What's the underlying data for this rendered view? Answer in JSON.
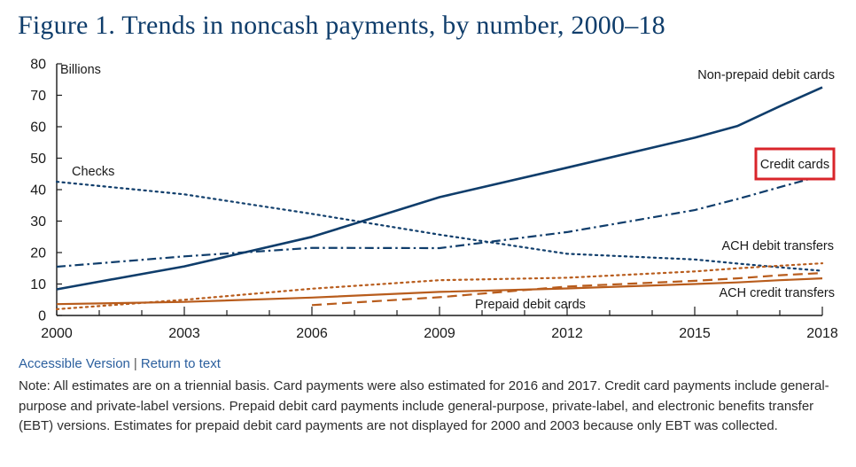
{
  "title": "Figure 1. Trends in noncash payments, by number, 2000–18",
  "chart_data": {
    "type": "line",
    "title": "Figure 1. Trends in noncash payments, by number, 2000–18",
    "ylabel": "Billions",
    "xlabel": "",
    "xlim": [
      2000,
      2018
    ],
    "ylim": [
      0,
      80
    ],
    "xticks": [
      2000,
      2003,
      2006,
      2009,
      2012,
      2015,
      2018
    ],
    "yticks": [
      0,
      10,
      20,
      30,
      40,
      50,
      60,
      70,
      80
    ],
    "series": [
      {
        "name": "Non-prepaid debit cards",
        "color": "#0f3d6b",
        "dash": "solid",
        "width": 2.6,
        "x": [
          2000,
          2003,
          2006,
          2009,
          2012,
          2015,
          2016,
          2017,
          2018
        ],
        "y": [
          8.3,
          15.6,
          25.0,
          37.6,
          47.0,
          56.5,
          60.2,
          66.5,
          72.5
        ]
      },
      {
        "name": "Credit cards",
        "color": "#0f3d6b",
        "dash": "dashdot",
        "width": 2.2,
        "x": [
          2000,
          2003,
          2006,
          2009,
          2012,
          2015,
          2016,
          2017,
          2018
        ],
        "y": [
          15.5,
          18.8,
          21.5,
          21.4,
          26.5,
          33.5,
          37.0,
          40.8,
          44.5
        ]
      },
      {
        "name": "Checks",
        "color": "#0f3d6b",
        "dash": "dotted",
        "width": 2.2,
        "x": [
          2000,
          2003,
          2006,
          2009,
          2012,
          2015,
          2016,
          2017,
          2018
        ],
        "y": [
          42.5,
          38.5,
          32.3,
          25.7,
          19.6,
          17.8,
          16.5,
          15.3,
          14.2
        ]
      },
      {
        "name": "ACH debit transfers",
        "color": "#b85c1c",
        "dash": "dotted",
        "width": 2.2,
        "x": [
          2000,
          2003,
          2006,
          2009,
          2012,
          2015,
          2016,
          2017,
          2018
        ],
        "y": [
          2.0,
          5.0,
          8.5,
          11.2,
          12.0,
          14.0,
          15.0,
          15.8,
          16.6
        ]
      },
      {
        "name": "ACH credit transfers",
        "color": "#b85c1c",
        "dash": "solid",
        "width": 2.2,
        "x": [
          2000,
          2003,
          2006,
          2009,
          2012,
          2015,
          2016,
          2017,
          2018
        ],
        "y": [
          3.6,
          4.3,
          5.7,
          7.5,
          8.6,
          10.0,
          10.5,
          11.2,
          11.8
        ]
      },
      {
        "name": "Prepaid debit cards",
        "color": "#b85c1c",
        "dash": "dashed",
        "width": 2.2,
        "x": [
          2006,
          2009,
          2012,
          2015,
          2016,
          2017,
          2018
        ],
        "y": [
          3.3,
          5.8,
          9.2,
          11.0,
          11.8,
          12.8,
          13.5
        ]
      }
    ],
    "highlighted_series": "Credit cards",
    "highlight_color": "#d9252b"
  },
  "links": {
    "accessible_version": "Accessible Version",
    "separator": "|",
    "return_to_text": "Return to text"
  },
  "note": "Note: All estimates are on a triennial basis. Card payments were also estimated for 2016 and 2017. Credit card payments include general-purpose and private-label versions. Prepaid debit card payments include general-purpose, private-label, and electronic benefits transfer (EBT) versions. Estimates for prepaid debit card payments are not displayed for 2000 and 2003 because only EBT was collected."
}
